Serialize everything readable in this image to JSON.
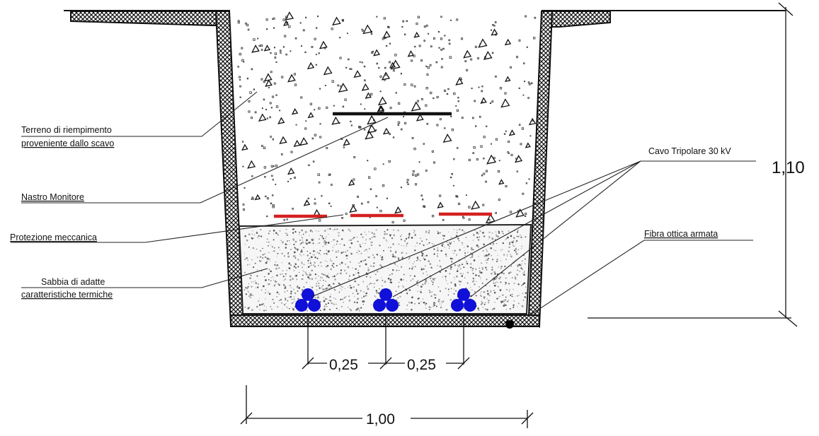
{
  "labels": {
    "terreno_line1": "Terreno di riempimento",
    "terreno_line2": "proveniente dallo scavo",
    "nastro": "Nastro Monitore",
    "protezione": "Protezione meccanica",
    "sabbia_line1": "Sabbia di adatte",
    "sabbia_line2": "caratteristiche termiche",
    "cavo": "Cavo Tripolare 30 kV",
    "fibra": "Fibra ottica armata"
  },
  "dimensions": {
    "depth": "1,10",
    "spacing_left": "0,25",
    "spacing_right": "0,25",
    "width": "1,00"
  },
  "colors": {
    "cable": "#1010d8",
    "protection": "#d42020",
    "tape": "#111111",
    "fiber": "#000000"
  }
}
